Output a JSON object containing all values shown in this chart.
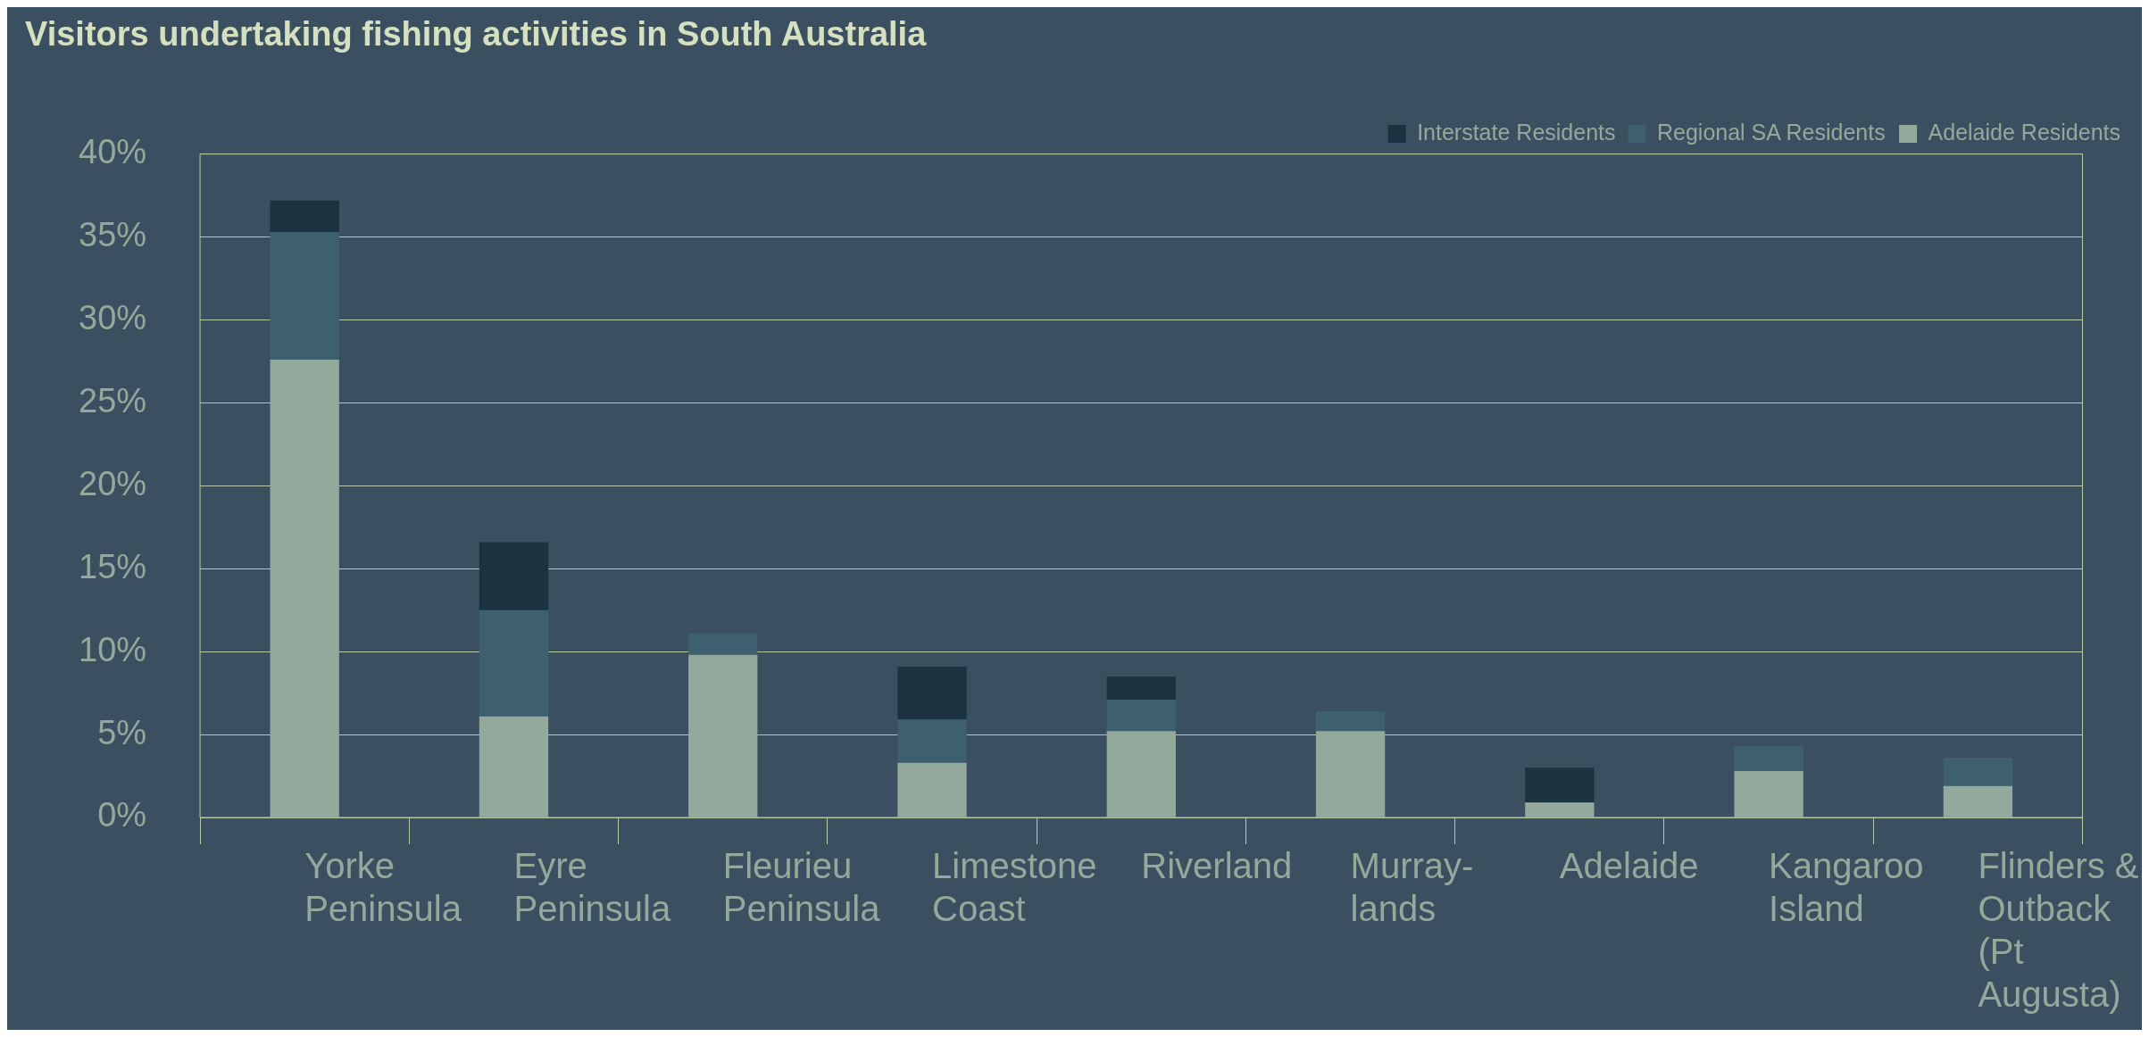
{
  "chart_data": {
    "type": "bar",
    "title": "Visitors undertaking fishing activities in South Australia",
    "categories": [
      "Yorke Peninsula",
      "Eyre Peninsula",
      "Fleurieu Peninsula",
      "Limestone Coast",
      "Riverland",
      "Murray-lands",
      "Adelaide",
      "Kangaroo Island",
      "Flinders & Outback (Pt Augusta)"
    ],
    "stacked": true,
    "series": [
      {
        "name": "Adelaide Residents",
        "color": "#93a99b",
        "values": [
          27.6,
          6.1,
          9.8,
          3.3,
          5.2,
          5.2,
          0.9,
          2.8,
          1.9
        ]
      },
      {
        "name": "Regional SA Residents",
        "color": "#3d5f6e",
        "values": [
          7.7,
          6.4,
          1.3,
          2.6,
          1.9,
          1.2,
          null,
          1.5,
          1.7
        ]
      },
      {
        "name": "Interstate Residents",
        "color": "#1b3340",
        "values": [
          1.9,
          4.1,
          null,
          3.2,
          1.4,
          null,
          2.1,
          null,
          null
        ]
      }
    ],
    "ylim": [
      0,
      40
    ],
    "yticks": [
      {
        "value": 0,
        "label": "0%"
      },
      {
        "value": 5,
        "label": "5%"
      },
      {
        "value": 10,
        "label": "10%"
      },
      {
        "value": 15,
        "label": "15%"
      },
      {
        "value": 20,
        "label": "20%"
      },
      {
        "value": 25,
        "label": "25%"
      },
      {
        "value": 30,
        "label": "30%"
      },
      {
        "value": 35,
        "label": "35%"
      },
      {
        "value": 40,
        "label": "40%"
      }
    ],
    "grid": "y",
    "legend": "top right"
  }
}
